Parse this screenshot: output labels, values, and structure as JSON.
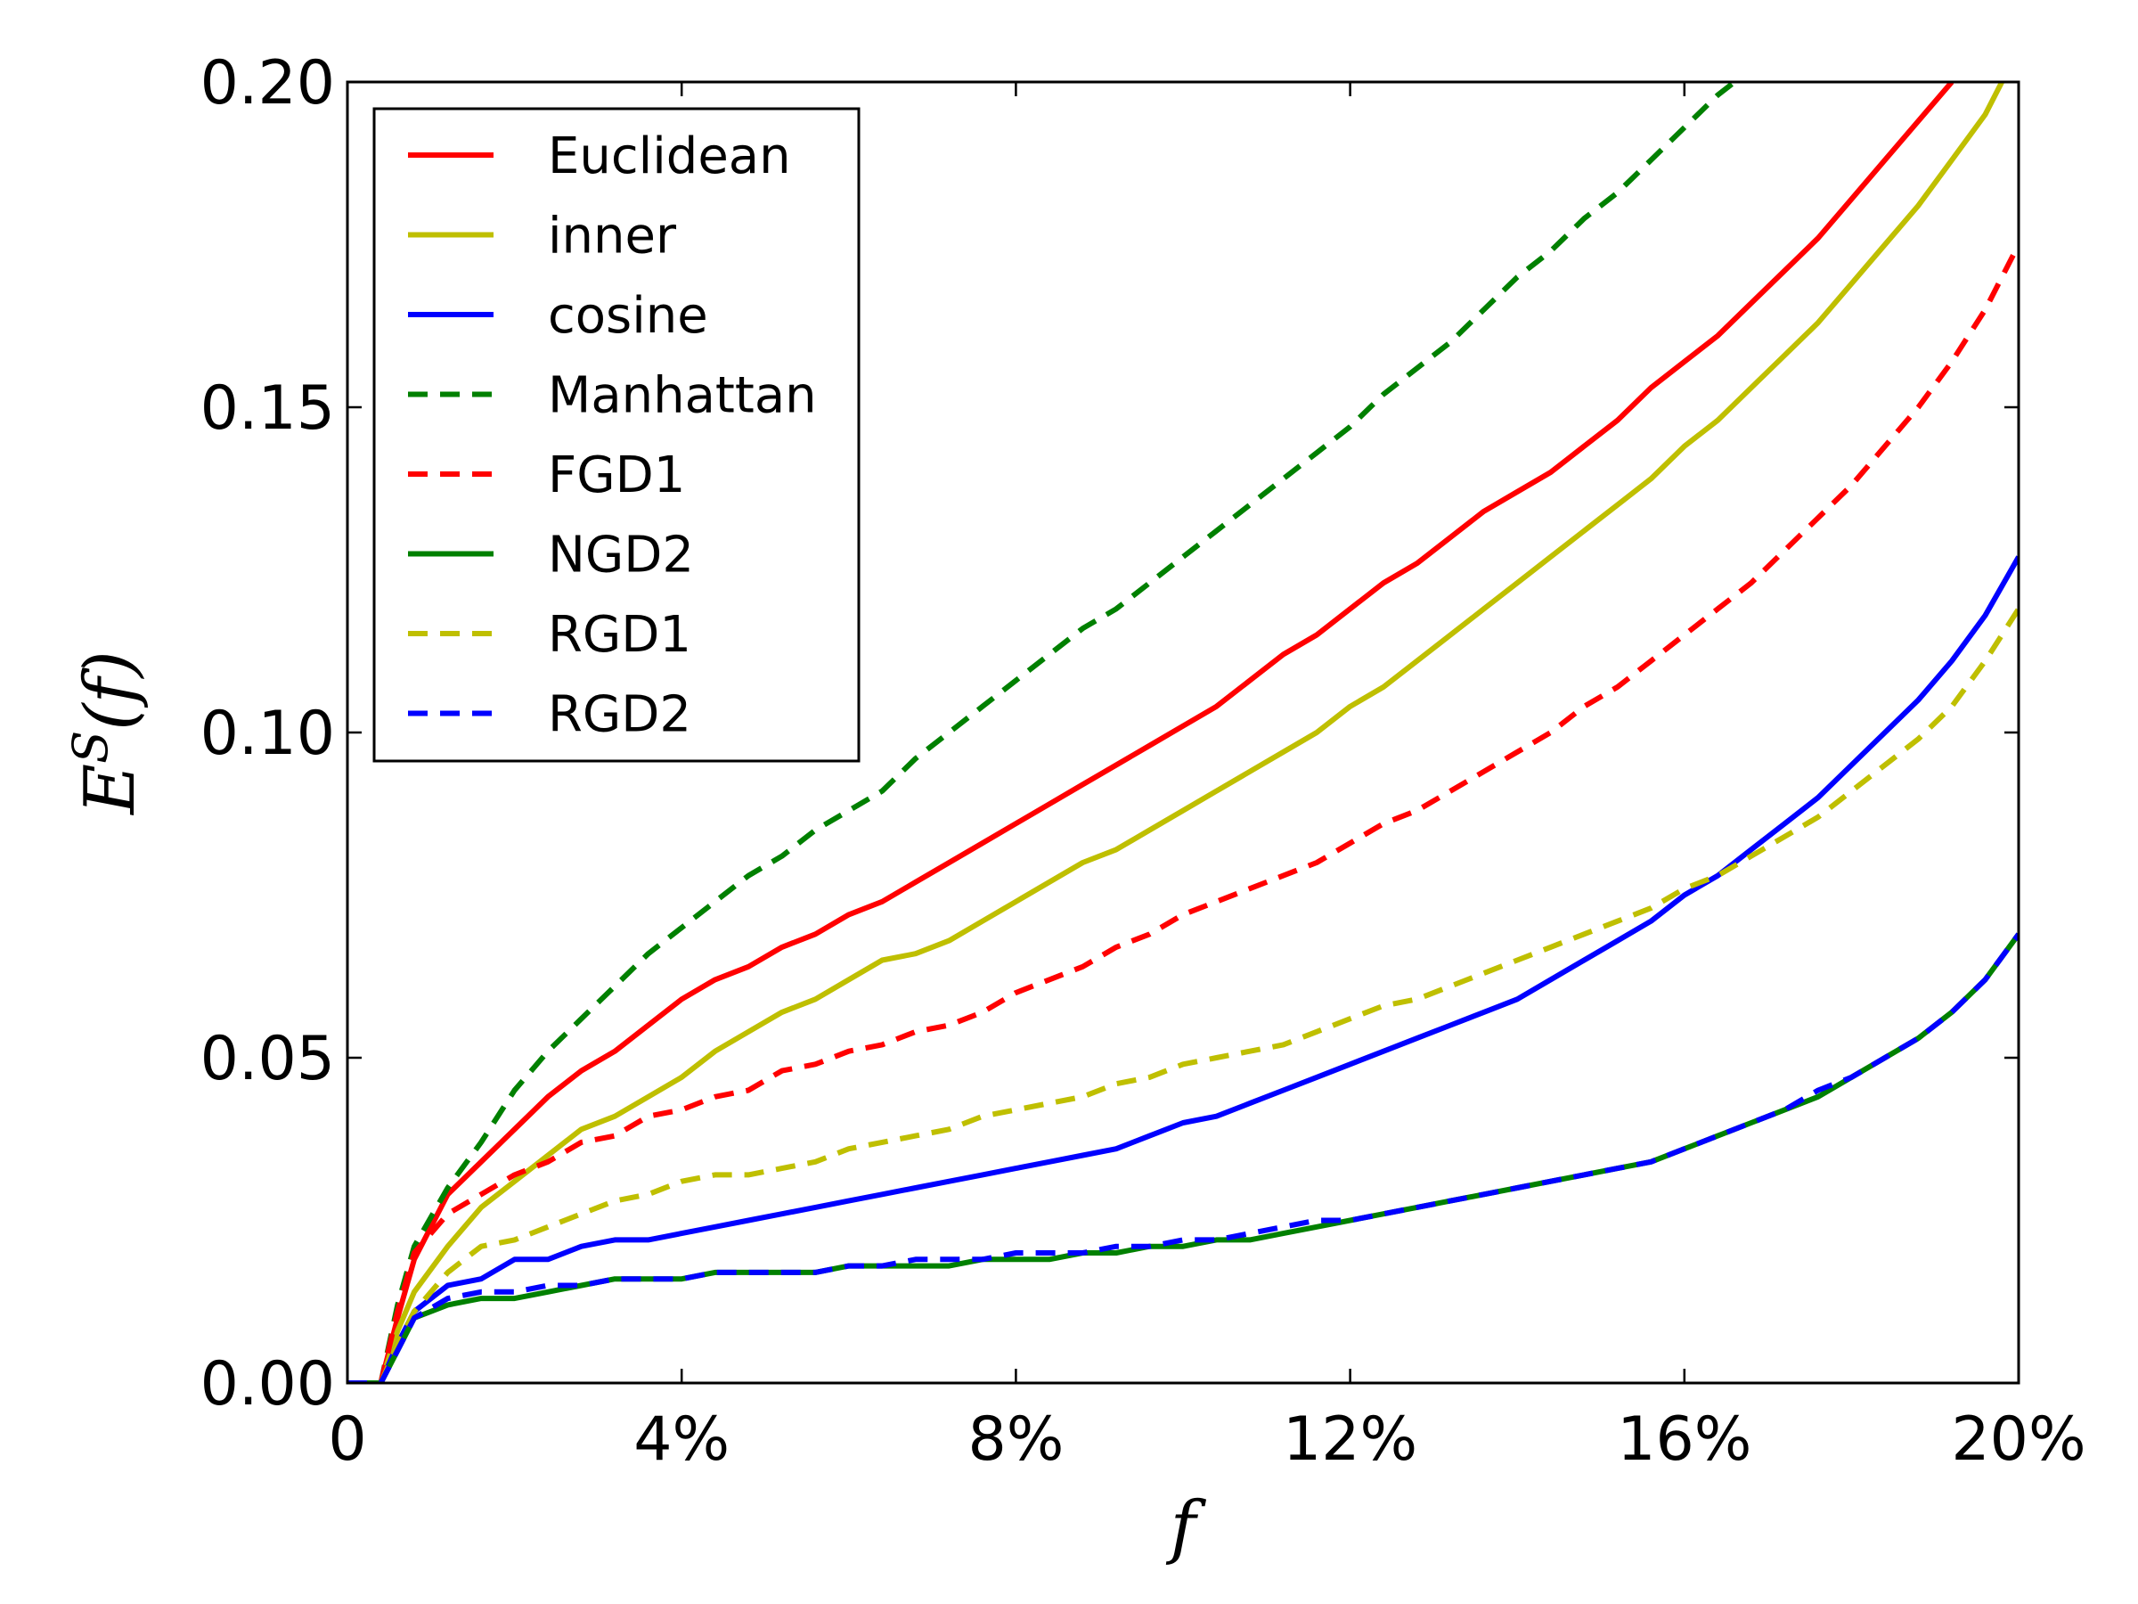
{
  "chart_data": {
    "type": "line",
    "title": "",
    "xlabel": "f",
    "ylabel": "E^S(f)",
    "xlim": [
      0,
      0.2
    ],
    "ylim": [
      0,
      0.2
    ],
    "x_ticks": [
      {
        "value": 0,
        "label": "0"
      },
      {
        "value": 0.04,
        "label": "4%"
      },
      {
        "value": 0.08,
        "label": "8%"
      },
      {
        "value": 0.12,
        "label": "12%"
      },
      {
        "value": 0.16,
        "label": "16%"
      },
      {
        "value": 0.2,
        "label": "20%"
      }
    ],
    "y_ticks": [
      {
        "value": 0,
        "label": "0.00"
      },
      {
        "value": 0.05,
        "label": "0.05"
      },
      {
        "value": 0.1,
        "label": "0.10"
      },
      {
        "value": 0.15,
        "label": "0.15"
      },
      {
        "value": 0.2,
        "label": "0.20"
      }
    ],
    "legend_position": "top-left",
    "series": [
      {
        "name": "Euclidean",
        "color": "#ff0000",
        "style": "solid",
        "x": [
          0,
          0.004,
          0.006,
          0.008,
          0.012,
          0.016,
          0.02,
          0.024,
          0.028,
          0.032,
          0.036,
          0.04,
          0.044,
          0.048,
          0.052,
          0.056,
          0.06,
          0.064,
          0.068,
          0.072,
          0.076,
          0.08,
          0.084,
          0.088,
          0.092,
          0.096,
          0.1,
          0.104,
          0.108,
          0.112,
          0.116,
          0.12,
          0.124,
          0.128,
          0.132,
          0.136,
          0.14,
          0.144,
          0.148,
          0.152,
          0.156,
          0.16,
          0.164,
          0.168,
          0.172,
          0.176,
          0.18,
          0.184,
          0.188,
          0.192
        ],
        "y": [
          0,
          0,
          0.01,
          0.019,
          0.029,
          0.034,
          0.039,
          0.044,
          0.048,
          0.051,
          0.055,
          0.059,
          0.062,
          0.064,
          0.067,
          0.069,
          0.072,
          0.074,
          0.077,
          0.08,
          0.083,
          0.086,
          0.089,
          0.092,
          0.095,
          0.098,
          0.101,
          0.104,
          0.108,
          0.112,
          0.115,
          0.119,
          0.123,
          0.126,
          0.13,
          0.134,
          0.137,
          0.14,
          0.144,
          0.148,
          0.153,
          0.157,
          0.161,
          0.166,
          0.171,
          0.176,
          0.182,
          0.188,
          0.194,
          0.2
        ]
      },
      {
        "name": "inner",
        "color": "#bfbf00",
        "style": "solid",
        "x": [
          0,
          0.004,
          0.006,
          0.008,
          0.012,
          0.016,
          0.02,
          0.024,
          0.028,
          0.032,
          0.036,
          0.04,
          0.044,
          0.048,
          0.052,
          0.056,
          0.06,
          0.064,
          0.068,
          0.072,
          0.076,
          0.08,
          0.084,
          0.088,
          0.092,
          0.096,
          0.1,
          0.104,
          0.108,
          0.112,
          0.116,
          0.12,
          0.124,
          0.128,
          0.132,
          0.136,
          0.14,
          0.144,
          0.148,
          0.152,
          0.156,
          0.16,
          0.164,
          0.168,
          0.172,
          0.176,
          0.18,
          0.184,
          0.188,
          0.192,
          0.196,
          0.198
        ],
        "y": [
          0,
          0,
          0.008,
          0.014,
          0.021,
          0.027,
          0.031,
          0.035,
          0.039,
          0.041,
          0.044,
          0.047,
          0.051,
          0.054,
          0.057,
          0.059,
          0.062,
          0.065,
          0.066,
          0.068,
          0.071,
          0.074,
          0.077,
          0.08,
          0.082,
          0.085,
          0.088,
          0.091,
          0.094,
          0.097,
          0.1,
          0.104,
          0.107,
          0.111,
          0.115,
          0.119,
          0.123,
          0.127,
          0.131,
          0.135,
          0.139,
          0.144,
          0.148,
          0.153,
          0.158,
          0.163,
          0.169,
          0.175,
          0.181,
          0.188,
          0.195,
          0.2
        ]
      },
      {
        "name": "cosine",
        "color": "#0000ff",
        "style": "solid",
        "x": [
          0,
          0.004,
          0.006,
          0.008,
          0.012,
          0.016,
          0.02,
          0.024,
          0.028,
          0.032,
          0.036,
          0.04,
          0.044,
          0.048,
          0.052,
          0.056,
          0.06,
          0.064,
          0.068,
          0.072,
          0.076,
          0.08,
          0.084,
          0.088,
          0.092,
          0.096,
          0.1,
          0.104,
          0.108,
          0.112,
          0.116,
          0.12,
          0.124,
          0.128,
          0.132,
          0.136,
          0.14,
          0.144,
          0.148,
          0.152,
          0.156,
          0.16,
          0.164,
          0.168,
          0.172,
          0.176,
          0.18,
          0.184,
          0.188,
          0.192,
          0.196,
          0.2
        ],
        "y": [
          0,
          0,
          0.006,
          0.011,
          0.015,
          0.016,
          0.019,
          0.019,
          0.021,
          0.022,
          0.022,
          0.023,
          0.024,
          0.025,
          0.026,
          0.027,
          0.028,
          0.029,
          0.03,
          0.031,
          0.032,
          0.033,
          0.034,
          0.035,
          0.036,
          0.038,
          0.04,
          0.041,
          0.043,
          0.045,
          0.047,
          0.049,
          0.051,
          0.053,
          0.055,
          0.057,
          0.059,
          0.062,
          0.065,
          0.068,
          0.071,
          0.075,
          0.078,
          0.082,
          0.086,
          0.09,
          0.095,
          0.1,
          0.105,
          0.111,
          0.118,
          0.127
        ]
      },
      {
        "name": "Manhattan",
        "color": "#008000",
        "style": "dashed",
        "x": [
          0,
          0.004,
          0.006,
          0.008,
          0.012,
          0.016,
          0.02,
          0.024,
          0.028,
          0.032,
          0.036,
          0.04,
          0.044,
          0.048,
          0.052,
          0.056,
          0.06,
          0.064,
          0.068,
          0.072,
          0.076,
          0.08,
          0.084,
          0.088,
          0.092,
          0.096,
          0.1,
          0.104,
          0.108,
          0.112,
          0.116,
          0.12,
          0.124,
          0.128,
          0.132,
          0.136,
          0.14,
          0.144,
          0.148,
          0.152,
          0.156,
          0.16,
          0.164,
          0.166
        ],
        "y": [
          0,
          0,
          0.012,
          0.021,
          0.03,
          0.037,
          0.045,
          0.051,
          0.056,
          0.061,
          0.066,
          0.07,
          0.074,
          0.078,
          0.081,
          0.085,
          0.088,
          0.091,
          0.096,
          0.1,
          0.104,
          0.108,
          0.112,
          0.116,
          0.119,
          0.123,
          0.127,
          0.131,
          0.135,
          0.139,
          0.143,
          0.147,
          0.152,
          0.156,
          0.16,
          0.165,
          0.17,
          0.174,
          0.179,
          0.183,
          0.188,
          0.193,
          0.198,
          0.2
        ]
      },
      {
        "name": "FGD1",
        "color": "#ff0000",
        "style": "dashed",
        "x": [
          0,
          0.004,
          0.006,
          0.008,
          0.012,
          0.016,
          0.02,
          0.024,
          0.028,
          0.032,
          0.036,
          0.04,
          0.044,
          0.048,
          0.052,
          0.056,
          0.06,
          0.064,
          0.068,
          0.072,
          0.076,
          0.08,
          0.084,
          0.088,
          0.092,
          0.096,
          0.1,
          0.104,
          0.108,
          0.112,
          0.116,
          0.12,
          0.124,
          0.128,
          0.132,
          0.136,
          0.14,
          0.144,
          0.148,
          0.152,
          0.156,
          0.16,
          0.164,
          0.168,
          0.172,
          0.176,
          0.18,
          0.184,
          0.188,
          0.192,
          0.196,
          0.2
        ],
        "y": [
          0,
          0,
          0.011,
          0.02,
          0.026,
          0.029,
          0.032,
          0.034,
          0.037,
          0.038,
          0.041,
          0.042,
          0.044,
          0.045,
          0.048,
          0.049,
          0.051,
          0.052,
          0.054,
          0.055,
          0.057,
          0.06,
          0.062,
          0.064,
          0.067,
          0.069,
          0.072,
          0.074,
          0.076,
          0.078,
          0.08,
          0.083,
          0.086,
          0.088,
          0.091,
          0.094,
          0.097,
          0.1,
          0.104,
          0.107,
          0.111,
          0.115,
          0.119,
          0.123,
          0.128,
          0.133,
          0.138,
          0.144,
          0.15,
          0.157,
          0.165,
          0.175
        ]
      },
      {
        "name": "NGD2",
        "color": "#008000",
        "style": "solid",
        "x": [
          0,
          0.004,
          0.006,
          0.008,
          0.012,
          0.016,
          0.02,
          0.024,
          0.028,
          0.032,
          0.036,
          0.04,
          0.044,
          0.048,
          0.052,
          0.056,
          0.06,
          0.064,
          0.068,
          0.072,
          0.076,
          0.08,
          0.084,
          0.088,
          0.092,
          0.096,
          0.1,
          0.104,
          0.108,
          0.112,
          0.116,
          0.12,
          0.124,
          0.128,
          0.132,
          0.136,
          0.14,
          0.144,
          0.148,
          0.152,
          0.156,
          0.16,
          0.164,
          0.168,
          0.172,
          0.176,
          0.18,
          0.184,
          0.188,
          0.192,
          0.196,
          0.2
        ],
        "y": [
          0,
          0,
          0.005,
          0.01,
          0.012,
          0.013,
          0.013,
          0.014,
          0.015,
          0.016,
          0.016,
          0.016,
          0.017,
          0.017,
          0.017,
          0.017,
          0.018,
          0.018,
          0.018,
          0.018,
          0.019,
          0.019,
          0.019,
          0.02,
          0.02,
          0.021,
          0.021,
          0.022,
          0.022,
          0.023,
          0.024,
          0.025,
          0.026,
          0.027,
          0.028,
          0.029,
          0.03,
          0.031,
          0.032,
          0.033,
          0.034,
          0.036,
          0.038,
          0.04,
          0.042,
          0.044,
          0.047,
          0.05,
          0.053,
          0.057,
          0.062,
          0.069
        ]
      },
      {
        "name": "RGD1",
        "color": "#bfbf00",
        "style": "dashed",
        "x": [
          0,
          0.004,
          0.006,
          0.008,
          0.012,
          0.016,
          0.02,
          0.024,
          0.028,
          0.032,
          0.036,
          0.04,
          0.044,
          0.048,
          0.052,
          0.056,
          0.06,
          0.064,
          0.068,
          0.072,
          0.076,
          0.08,
          0.084,
          0.088,
          0.092,
          0.096,
          0.1,
          0.104,
          0.108,
          0.112,
          0.116,
          0.12,
          0.124,
          0.128,
          0.132,
          0.136,
          0.14,
          0.144,
          0.148,
          0.152,
          0.156,
          0.16,
          0.164,
          0.168,
          0.172,
          0.176,
          0.18,
          0.184,
          0.188,
          0.192,
          0.196,
          0.2
        ],
        "y": [
          0,
          0,
          0.006,
          0.011,
          0.017,
          0.021,
          0.022,
          0.024,
          0.026,
          0.028,
          0.029,
          0.031,
          0.032,
          0.032,
          0.033,
          0.034,
          0.036,
          0.037,
          0.038,
          0.039,
          0.041,
          0.042,
          0.043,
          0.044,
          0.046,
          0.047,
          0.049,
          0.05,
          0.051,
          0.052,
          0.054,
          0.056,
          0.058,
          0.059,
          0.061,
          0.063,
          0.065,
          0.067,
          0.069,
          0.071,
          0.073,
          0.076,
          0.078,
          0.081,
          0.084,
          0.087,
          0.091,
          0.095,
          0.099,
          0.104,
          0.111,
          0.119
        ]
      },
      {
        "name": "RGD2",
        "color": "#0000ff",
        "style": "dashed",
        "x": [
          0,
          0.004,
          0.006,
          0.008,
          0.012,
          0.016,
          0.02,
          0.024,
          0.028,
          0.032,
          0.036,
          0.04,
          0.044,
          0.048,
          0.052,
          0.056,
          0.06,
          0.064,
          0.068,
          0.072,
          0.076,
          0.08,
          0.084,
          0.088,
          0.092,
          0.096,
          0.1,
          0.104,
          0.108,
          0.112,
          0.116,
          0.12,
          0.124,
          0.128,
          0.132,
          0.136,
          0.14,
          0.144,
          0.148,
          0.152,
          0.156,
          0.16,
          0.164,
          0.168,
          0.172,
          0.176,
          0.18,
          0.184,
          0.188,
          0.192,
          0.196,
          0.2
        ],
        "y": [
          0,
          0,
          0.005,
          0.01,
          0.013,
          0.014,
          0.014,
          0.015,
          0.015,
          0.016,
          0.016,
          0.016,
          0.017,
          0.017,
          0.017,
          0.017,
          0.018,
          0.018,
          0.019,
          0.019,
          0.019,
          0.02,
          0.02,
          0.02,
          0.021,
          0.021,
          0.022,
          0.022,
          0.023,
          0.024,
          0.025,
          0.025,
          0.026,
          0.027,
          0.028,
          0.029,
          0.03,
          0.031,
          0.032,
          0.033,
          0.034,
          0.036,
          0.038,
          0.04,
          0.042,
          0.045,
          0.047,
          0.05,
          0.053,
          0.057,
          0.062,
          0.069
        ]
      }
    ]
  }
}
